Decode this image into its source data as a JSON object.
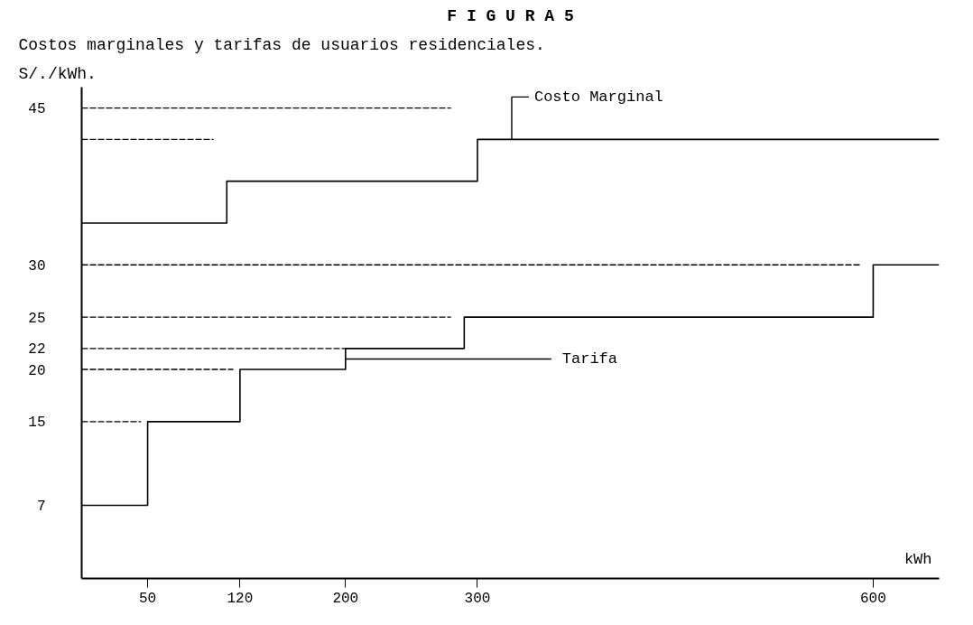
{
  "chart_data": {
    "type": "step",
    "title": "F I G U R A 5",
    "subtitle": "Costos marginales y tarifas de usuarios residenciales.",
    "ylabel": "S/./kWh.",
    "xlabel": "kWh",
    "series": [
      {
        "name": "Costo Marginal",
        "color": "#000000",
        "x": [
          0,
          110,
          300,
          650
        ],
        "values": [
          34,
          38,
          42,
          42
        ]
      },
      {
        "name": "Tarifa",
        "color": "#000000",
        "x": [
          0,
          50,
          120,
          200,
          290,
          600,
          650
        ],
        "values": [
          7,
          15,
          20,
          22,
          25,
          30,
          30
        ]
      },
      {
        "type": "line",
        "line_style": "dashed",
        "color": "#000000",
        "x": [
          0,
          280
        ],
        "values": [
          45,
          45
        ]
      },
      {
        "type": "line",
        "line_style": "dashed",
        "color": "#000000",
        "x": [
          0,
          100
        ],
        "values": [
          42,
          42
        ]
      },
      {
        "type": "line",
        "line_style": "dashed",
        "color": "#000000",
        "x": [
          0,
          590
        ],
        "values": [
          30,
          30
        ]
      },
      {
        "type": "line",
        "line_style": "dashed",
        "color": "#000000",
        "x": [
          0,
          280
        ],
        "values": [
          25,
          25
        ]
      },
      {
        "type": "line",
        "line_style": "dashed",
        "color": "#000000",
        "x": [
          0,
          200
        ],
        "values": [
          22,
          22
        ]
      },
      {
        "type": "line",
        "line_style": "dashed",
        "color": "#000000",
        "x": [
          0,
          115
        ],
        "values": [
          20,
          20
        ]
      },
      {
        "type": "line",
        "line_style": "dashed",
        "color": "#000000",
        "x": [
          0,
          45
        ],
        "values": [
          15,
          15
        ]
      }
    ],
    "xlim": [
      0,
      650
    ],
    "xticks": [
      50,
      120,
      200,
      300,
      600
    ],
    "ylim": [
      0,
      47
    ],
    "yticks": [
      7,
      15,
      20,
      22,
      25,
      30,
      45
    ],
    "grid": false
  }
}
